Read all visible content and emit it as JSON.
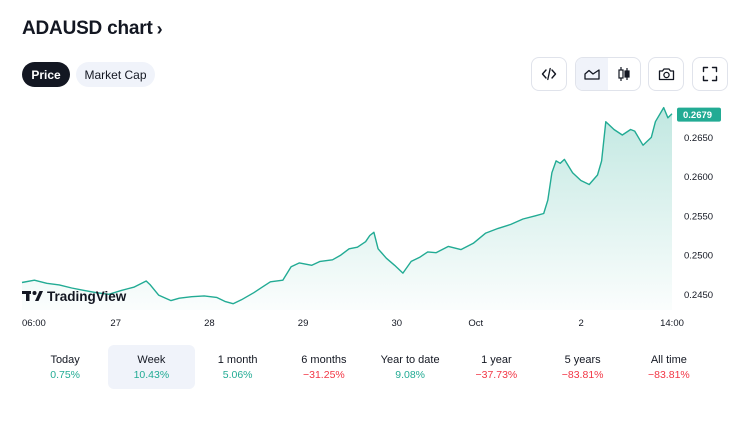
{
  "header": {
    "title": "ADAUSD chart",
    "chevron": "›"
  },
  "tabs": [
    {
      "label": "Price",
      "active": true
    },
    {
      "label": "Market Cap",
      "active": false
    }
  ],
  "toolbar": {
    "embed_icon": "code-icon",
    "area_icon": "area-chart-icon",
    "candle_icon": "candlestick-icon",
    "snapshot_icon": "camera-icon",
    "fullscreen_icon": "fullscreen-icon"
  },
  "colors": {
    "line": "#22ab94",
    "fill": "#22ab94",
    "price_tag": "#22ab94",
    "positive": "#22ab94",
    "negative": "#f23645",
    "active_pill": "#131722"
  },
  "chart_data": {
    "type": "area",
    "watermark": "TradingView",
    "x_ticks": [
      "06:00",
      "27",
      "28",
      "29",
      "30",
      "Oct",
      "2",
      "14:00"
    ],
    "y_ticks": [
      0.245,
      0.25,
      0.255,
      0.26,
      0.265
    ],
    "ylim": [
      0.243,
      0.269
    ],
    "last_price": "0.2679",
    "series": [
      {
        "points": [
          [
            0,
            0.2465
          ],
          [
            3,
            0.2468
          ],
          [
            6,
            0.2464
          ],
          [
            9,
            0.2462
          ],
          [
            12,
            0.2458
          ],
          [
            15,
            0.2455
          ],
          [
            18,
            0.2452
          ],
          [
            21,
            0.245
          ],
          [
            24,
            0.2455
          ],
          [
            27,
            0.2459
          ],
          [
            30,
            0.2467
          ],
          [
            31,
            0.2462
          ],
          [
            33,
            0.2449
          ],
          [
            36,
            0.2442
          ],
          [
            38,
            0.2445
          ],
          [
            41,
            0.2447
          ],
          [
            44,
            0.2448
          ],
          [
            47,
            0.2446
          ],
          [
            49,
            0.2441
          ],
          [
            51,
            0.2438
          ],
          [
            53,
            0.2443
          ],
          [
            56,
            0.2452
          ],
          [
            58,
            0.2459
          ],
          [
            60,
            0.2466
          ],
          [
            63,
            0.2468
          ],
          [
            65,
            0.2485
          ],
          [
            67,
            0.249
          ],
          [
            70,
            0.2487
          ],
          [
            72,
            0.2492
          ],
          [
            75,
            0.2494
          ],
          [
            77,
            0.25
          ],
          [
            79,
            0.2508
          ],
          [
            81,
            0.251
          ],
          [
            83,
            0.2517
          ],
          [
            84,
            0.2525
          ],
          [
            85,
            0.2529
          ],
          [
            86,
            0.2508
          ],
          [
            88,
            0.2496
          ],
          [
            90,
            0.2487
          ],
          [
            92,
            0.2477
          ],
          [
            94,
            0.2492
          ],
          [
            96,
            0.2497
          ],
          [
            98,
            0.2504
          ],
          [
            100,
            0.2503
          ],
          [
            103,
            0.2511
          ],
          [
            106,
            0.2507
          ],
          [
            109,
            0.2515
          ],
          [
            112,
            0.2528
          ],
          [
            115,
            0.2534
          ],
          [
            118,
            0.2539
          ],
          [
            121,
            0.2546
          ],
          [
            124,
            0.255
          ],
          [
            126,
            0.2553
          ],
          [
            127,
            0.257
          ],
          [
            128,
            0.2605
          ],
          [
            129,
            0.262
          ],
          [
            130,
            0.2617
          ],
          [
            131,
            0.2622
          ],
          [
            133,
            0.2605
          ],
          [
            135,
            0.2595
          ],
          [
            137,
            0.259
          ],
          [
            139,
            0.2602
          ],
          [
            140,
            0.262
          ],
          [
            141,
            0.267
          ],
          [
            143,
            0.266
          ],
          [
            145,
            0.2653
          ],
          [
            147,
            0.266
          ],
          [
            148,
            0.2658
          ],
          [
            150,
            0.264
          ],
          [
            152,
            0.265
          ],
          [
            153,
            0.267
          ],
          [
            155,
            0.2688
          ],
          [
            156,
            0.2675
          ],
          [
            157,
            0.268
          ]
        ]
      }
    ]
  },
  "periods": [
    {
      "label": "Today",
      "value": "0.75%",
      "trend": "pos",
      "selected": false
    },
    {
      "label": "Week",
      "value": "10.43%",
      "trend": "pos",
      "selected": true
    },
    {
      "label": "1 month",
      "value": "5.06%",
      "trend": "pos",
      "selected": false
    },
    {
      "label": "6 months",
      "value": "−31.25%",
      "trend": "neg",
      "selected": false
    },
    {
      "label": "Year to date",
      "value": "9.08%",
      "trend": "pos",
      "selected": false
    },
    {
      "label": "1 year",
      "value": "−37.73%",
      "trend": "neg",
      "selected": false
    },
    {
      "label": "5 years",
      "value": "−83.81%",
      "trend": "neg",
      "selected": false
    },
    {
      "label": "All time",
      "value": "−83.81%",
      "trend": "neg",
      "selected": false
    }
  ]
}
